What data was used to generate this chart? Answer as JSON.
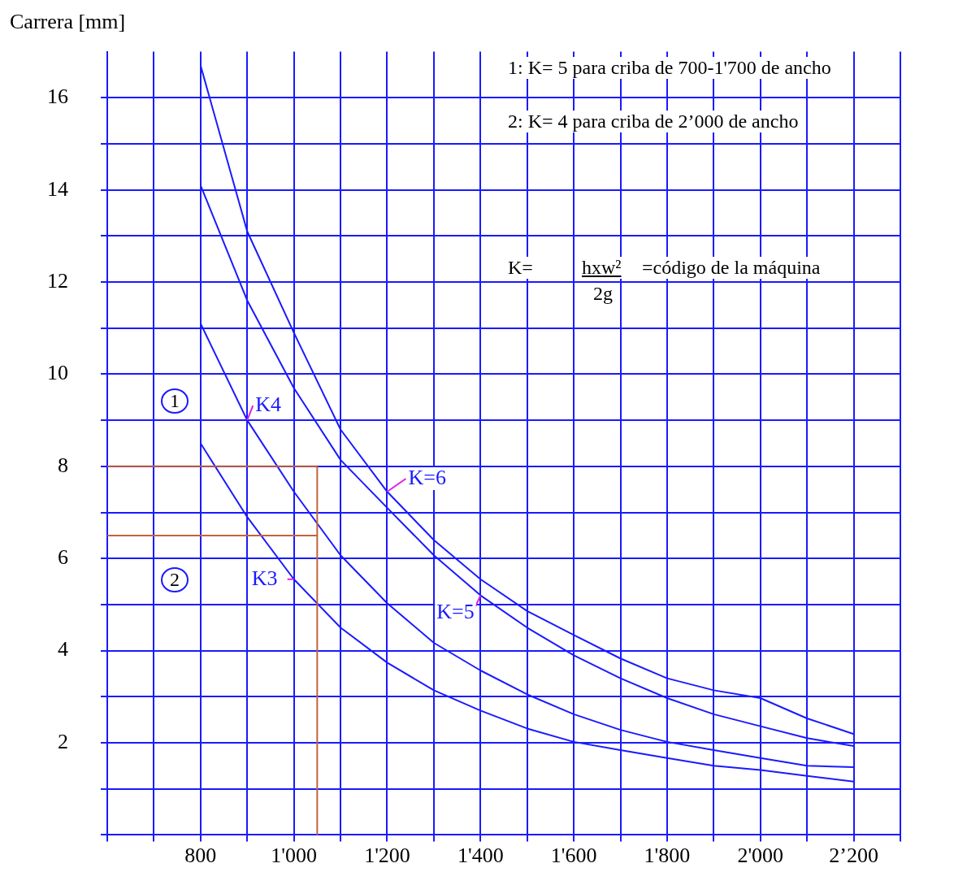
{
  "chart_data": {
    "type": "line",
    "ylabel": "Carrera [mm]",
    "x": [
      800,
      900,
      1000,
      1100,
      1200,
      1300,
      1400,
      1500,
      1600,
      1700,
      1800,
      1900,
      2000,
      2100,
      2200
    ],
    "series": [
      {
        "name": "K=6",
        "color": "#1a1aff",
        "values": [
          16.7,
          13.1,
          10.9,
          8.8,
          7.45,
          6.4,
          5.55,
          4.86,
          4.34,
          3.83,
          3.4,
          3.14,
          2.97,
          2.53,
          2.19
        ]
      },
      {
        "name": "K=5",
        "color": "#1a1aff",
        "values": [
          14.1,
          11.6,
          9.7,
          8.14,
          7.1,
          6.07,
          5.2,
          4.5,
          3.9,
          3.4,
          2.97,
          2.62,
          2.36,
          2.1,
          1.93
        ]
      },
      {
        "name": "K4",
        "color": "#1a1aff",
        "values": [
          11.1,
          9.0,
          7.45,
          6.07,
          5.03,
          4.17,
          3.57,
          3.05,
          2.62,
          2.28,
          2.02,
          1.84,
          1.67,
          1.5,
          1.47
        ]
      },
      {
        "name": "K3",
        "color": "#1a1aff",
        "values": [
          8.5,
          6.9,
          5.55,
          4.5,
          3.74,
          3.14,
          2.7,
          2.31,
          2.02,
          1.84,
          1.67,
          1.5,
          1.41,
          1.28,
          1.16
        ]
      }
    ],
    "xlim": [
      600,
      2300
    ],
    "xticks": [
      {
        "value": 600,
        "label": null
      },
      {
        "value": 700,
        "label": null
      },
      800,
      {
        "value": 900,
        "label": null
      },
      {
        "value": 1000,
        "label": "1'000"
      },
      {
        "value": 1100,
        "label": null
      },
      {
        "value": 1200,
        "label": "1'200"
      },
      {
        "value": 1300,
        "label": null
      },
      {
        "value": 1400,
        "label": "1'400"
      },
      {
        "value": 1500,
        "label": null
      },
      {
        "value": 1600,
        "label": "1'600"
      },
      {
        "value": 1700,
        "label": null
      },
      {
        "value": 1800,
        "label": "1'800"
      },
      {
        "value": 1900,
        "label": null
      },
      {
        "value": 2000,
        "label": "2'000"
      },
      {
        "value": 2100,
        "label": null
      },
      {
        "value": 2200,
        "label": "2’200"
      },
      {
        "value": 2300,
        "label": null
      }
    ],
    "ylim": [
      0,
      17
    ],
    "yticks": [
      {
        "value": 0,
        "label": null
      },
      {
        "value": 1,
        "label": null
      },
      2,
      {
        "value": 3,
        "label": null
      },
      4,
      {
        "value": 5,
        "label": null
      },
      6,
      {
        "value": 7,
        "label": null
      },
      8,
      {
        "value": 9,
        "label": null
      },
      10,
      {
        "value": 11,
        "label": null
      },
      12,
      {
        "value": 13,
        "label": null
      },
      14,
      {
        "value": 15,
        "label": null
      },
      16
    ],
    "ref_lines": [
      {
        "axis": "x",
        "value": 1050,
        "color": "#c0643c"
      },
      {
        "axis": "y",
        "value": 8,
        "color": "#c0643c"
      },
      {
        "axis": "y",
        "value": 6.5,
        "color": "#c0643c"
      }
    ],
    "annotations": [
      "1: K= 5 para criba de 700-1'700 de ancho",
      "2: K= 4 para criba de 2’000 de ancho",
      "K=",
      "hxw²",
      "=código de la máquina",
      "2g",
      "1",
      "2"
    ],
    "grid": true,
    "legend": false,
    "marker": "none",
    "line_style": "solid"
  }
}
